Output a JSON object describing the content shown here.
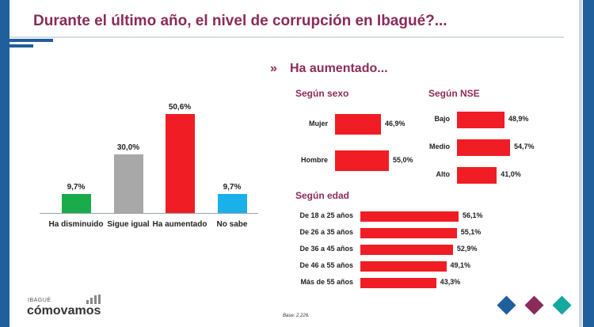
{
  "title": "Durante el último año, el nivel de corrupción en Ibagué?...",
  "panel_title": "Ha aumentado...",
  "logo": {
    "small_text": "IBAGUÉ",
    "main_text": "cómovamos"
  },
  "base_note": "Base: 2.226.",
  "colors": {
    "brand_purple": "#8a2b5a",
    "brand_blue": "#1f5f9b",
    "bar_red": "#f01d24",
    "bar_green": "#1aab4b",
    "bar_gray": "#a8a8a8",
    "bar_lightblue": "#1ab0ea",
    "diamond_blue": "#1f5f9b",
    "diamond_purple": "#8a2b5a",
    "diamond_teal": "#16a7a0"
  },
  "chart_data": [
    {
      "type": "bar",
      "orientation": "vertical",
      "categories": [
        "Ha disminuido",
        "Sigue igual",
        "Ha aumentado",
        "No sabe"
      ],
      "values": [
        9.7,
        30.0,
        50.6,
        9.7
      ],
      "value_labels": [
        "9,7%",
        "30,0%",
        "50,6%",
        "9,7%"
      ],
      "colors": [
        "#1aab4b",
        "#a8a8a8",
        "#f01d24",
        "#1ab0ea"
      ],
      "ylim": [
        0,
        60
      ]
    },
    {
      "type": "bar",
      "orientation": "horizontal",
      "title": "Según sexo",
      "categories": [
        "Mujer",
        "Hombre"
      ],
      "values": [
        46.9,
        55.0
      ],
      "value_labels": [
        "46,9%",
        "55,0%"
      ],
      "xlim": [
        0,
        100
      ]
    },
    {
      "type": "bar",
      "orientation": "horizontal",
      "title": "Según NSE",
      "categories": [
        "Bajo",
        "Medio",
        "Alto"
      ],
      "values": [
        48.9,
        54.7,
        41.0
      ],
      "value_labels": [
        "48,9%",
        "54,7%",
        "41,0%"
      ],
      "xlim": [
        0,
        100
      ]
    },
    {
      "type": "bar",
      "orientation": "horizontal",
      "title": "Según edad",
      "categories": [
        "De 18 a 25 años",
        "De 26 a 35 años",
        "De 36 a 45 años",
        "De 46 a 55 años",
        "Más de 55 años"
      ],
      "values": [
        56.1,
        55.1,
        52.9,
        49.1,
        43.3
      ],
      "value_labels": [
        "56,1%",
        "55,1%",
        "52,9%",
        "49,1%",
        "43,3%"
      ],
      "xlim": [
        0,
        100
      ]
    }
  ]
}
